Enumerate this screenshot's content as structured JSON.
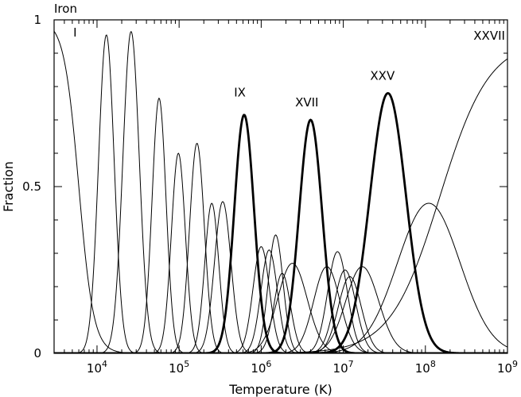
{
  "chart_data": {
    "type": "line",
    "title": "Iron",
    "xlabel": "Temperature (K)",
    "ylabel": "Fraction",
    "x_scale": "log",
    "xlim": [
      3000,
      1000000000
    ],
    "ylim": [
      0,
      1
    ],
    "x_ticks": [
      {
        "value": 10000,
        "base": "10",
        "exp": "4"
      },
      {
        "value": 100000,
        "base": "10",
        "exp": "5"
      },
      {
        "value": 1000000,
        "base": "10",
        "exp": "6"
      },
      {
        "value": 10000000,
        "base": "10",
        "exp": "7"
      },
      {
        "value": 100000000,
        "base": "10",
        "exp": "8"
      },
      {
        "value": 1000000000,
        "base": "10",
        "exp": "9"
      }
    ],
    "y_ticks": [
      {
        "value": 0,
        "label": "0"
      },
      {
        "value": 0.5,
        "label": "0.5"
      },
      {
        "value": 1,
        "label": "1"
      }
    ],
    "grid": false,
    "annotations": [
      {
        "text": "I",
        "x": 5400,
        "y": 0.95
      },
      {
        "text": "IX",
        "x": 550000,
        "y": 0.77
      },
      {
        "text": "XVII",
        "x": 3600000,
        "y": 0.74
      },
      {
        "text": "XXV",
        "x": 30000000,
        "y": 0.82
      },
      {
        "text": "XXVII",
        "x": 600000000,
        "y": 0.94
      }
    ],
    "series": [
      {
        "kind": "falling",
        "x50": 6000,
        "width": 0.09,
        "peak": 1.0,
        "bold": false
      },
      {
        "peak_x": 13000,
        "peak": 0.955,
        "sigma": 0.095,
        "bold": false
      },
      {
        "peak_x": 26000,
        "peak": 0.965,
        "sigma": 0.1,
        "bold": false
      },
      {
        "peak_x": 57000,
        "peak": 0.765,
        "sigma": 0.085,
        "bold": false
      },
      {
        "peak_x": 98000,
        "peak": 0.6,
        "sigma": 0.085,
        "bold": false
      },
      {
        "peak_x": 165000,
        "peak": 0.63,
        "sigma": 0.09,
        "bold": false
      },
      {
        "peak_x": 250000,
        "peak": 0.45,
        "sigma": 0.085,
        "bold": false
      },
      {
        "peak_x": 340000,
        "peak": 0.455,
        "sigma": 0.1,
        "bold": false
      },
      {
        "peak_x": 620000,
        "peak": 0.715,
        "sigma": 0.12,
        "bold": true
      },
      {
        "peak_x": 1000000,
        "peak": 0.32,
        "sigma": 0.1,
        "bold": false
      },
      {
        "peak_x": 1250000,
        "peak": 0.31,
        "sigma": 0.1,
        "bold": false
      },
      {
        "peak_x": 1500000,
        "peak": 0.355,
        "sigma": 0.09,
        "bold": false
      },
      {
        "peak_x": 1800000,
        "peak": 0.24,
        "sigma": 0.1,
        "bold": false
      },
      {
        "peak_x": 2400000,
        "peak": 0.27,
        "sigma": 0.18,
        "bold": false
      },
      {
        "peak_x": 4000000,
        "peak": 0.7,
        "sigma": 0.14,
        "bold": true
      },
      {
        "peak_x": 6300000,
        "peak": 0.26,
        "sigma": 0.16,
        "bold": false
      },
      {
        "peak_x": 8500000,
        "peak": 0.305,
        "sigma": 0.12,
        "bold": false
      },
      {
        "peak_x": 10500000,
        "peak": 0.25,
        "sigma": 0.13,
        "bold": false
      },
      {
        "peak_x": 12000000,
        "peak": 0.23,
        "sigma": 0.14,
        "bold": false
      },
      {
        "peak_x": 17000000,
        "peak": 0.26,
        "sigma": 0.2,
        "bold": false
      },
      {
        "peak_x": 35000000,
        "peak": 0.78,
        "sigma": 0.22,
        "bold": true
      },
      {
        "peak_x": 110000000,
        "peak": 0.45,
        "sigma": 0.38,
        "bold": false
      },
      {
        "kind": "rising",
        "x50": 150000000,
        "width": 0.3,
        "peak": 0.94,
        "bold": false
      }
    ]
  }
}
